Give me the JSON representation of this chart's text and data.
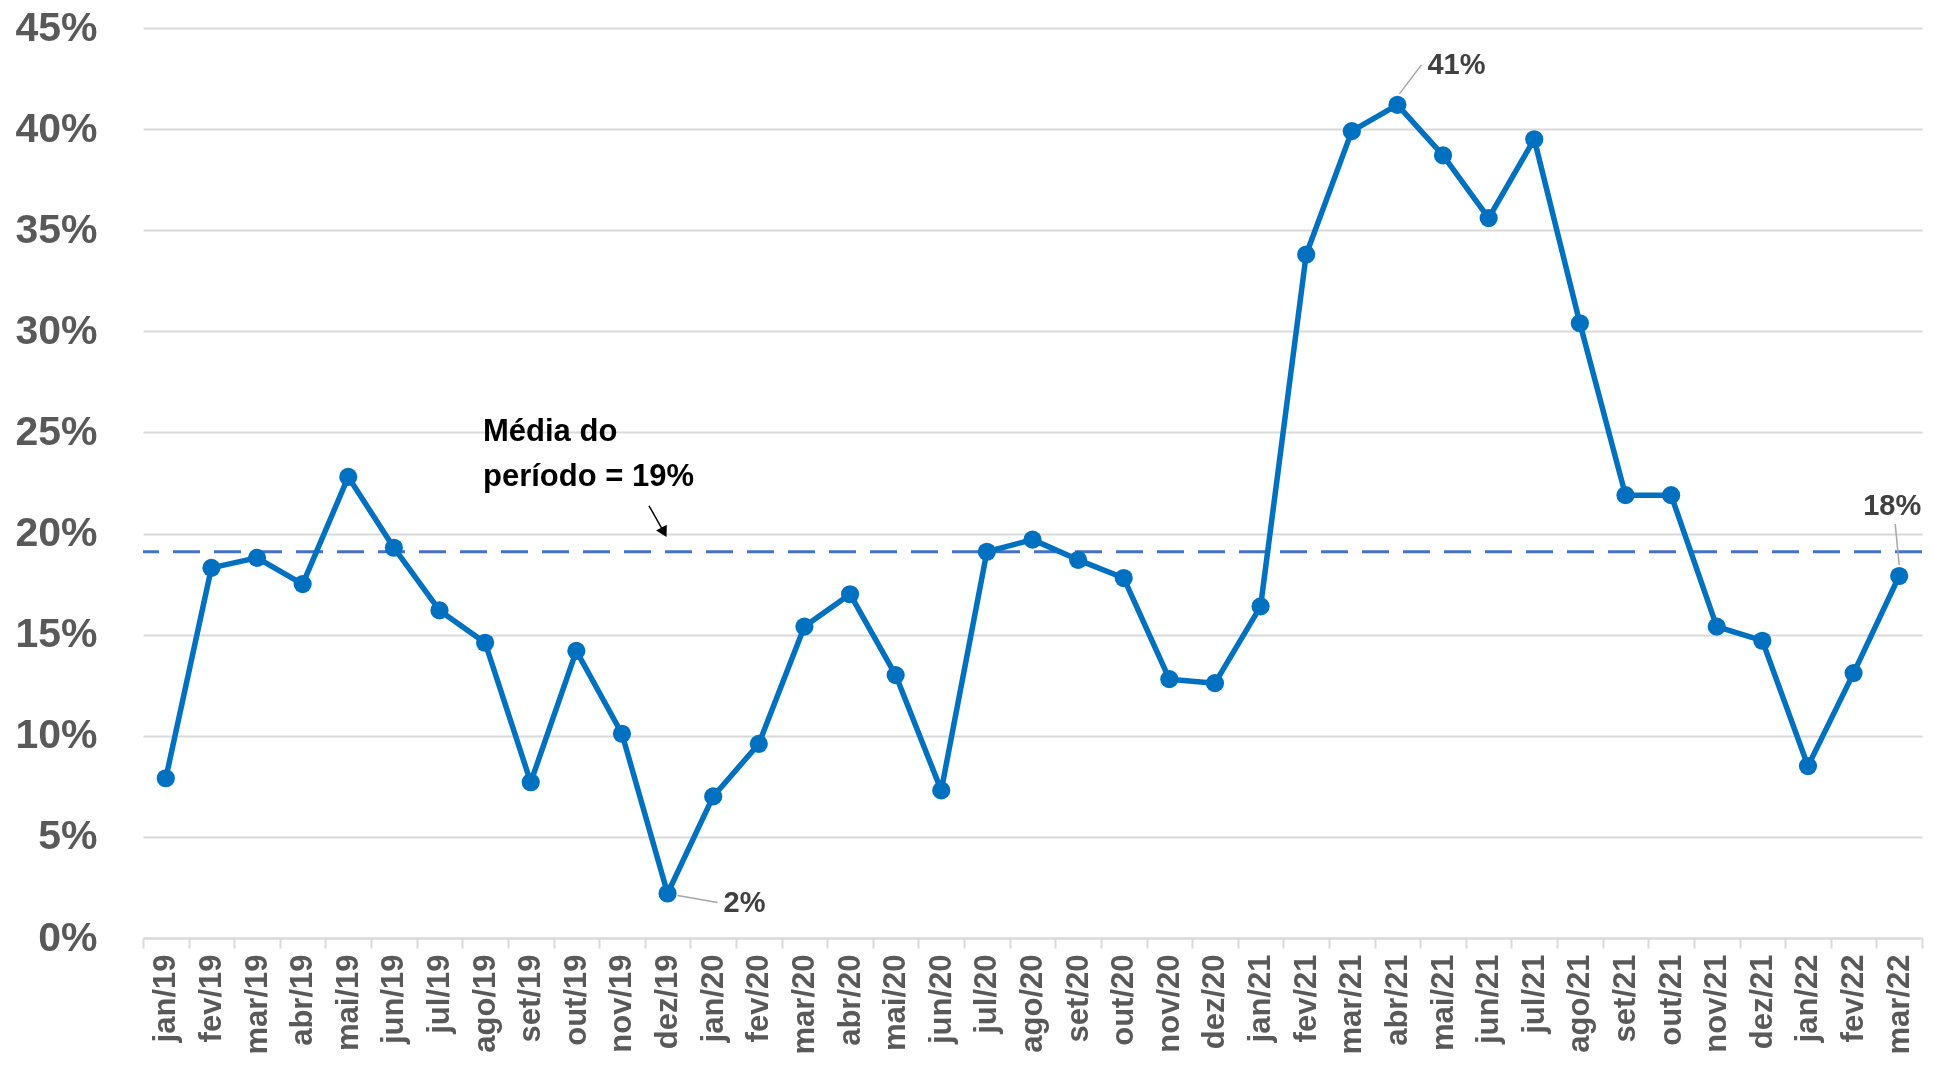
{
  "chart_data": {
    "type": "line",
    "categories": [
      "jan/19",
      "fev/19",
      "mar/19",
      "abr/19",
      "mai/19",
      "jun/19",
      "jul/19",
      "ago/19",
      "set/19",
      "out/19",
      "nov/19",
      "dez/19",
      "jan/20",
      "fev/20",
      "mar/20",
      "abr/20",
      "mai/20",
      "jun/20",
      "jul/20",
      "ago/20",
      "set/20",
      "out/20",
      "nov/20",
      "dez/20",
      "jan/21",
      "fev/21",
      "mar/21",
      "abr/21",
      "mai/21",
      "jun/21",
      "jul/21",
      "ago/21",
      "set/21",
      "out/21",
      "nov/21",
      "dez/21",
      "jan/22",
      "fev/22",
      "mar/22"
    ],
    "series": [
      {
        "color": "#0070c0",
        "values": [
          7.9,
          18.3,
          18.8,
          17.5,
          22.8,
          19.3,
          16.2,
          14.6,
          7.7,
          14.2,
          10.1,
          2.2,
          7.0,
          9.6,
          15.4,
          17.0,
          13.0,
          7.3,
          19.1,
          19.7,
          18.7,
          17.8,
          12.8,
          12.6,
          16.4,
          33.8,
          39.9,
          41.2,
          38.7,
          35.6,
          39.5,
          30.4,
          21.9,
          21.9,
          15.4,
          14.7,
          8.5,
          13.1,
          17.9
        ],
        "value_labels": [
          null,
          null,
          null,
          null,
          null,
          null,
          null,
          null,
          null,
          null,
          null,
          "2%",
          null,
          null,
          null,
          null,
          null,
          null,
          null,
          null,
          null,
          null,
          null,
          null,
          null,
          null,
          null,
          "41%",
          null,
          null,
          null,
          null,
          null,
          null,
          null,
          null,
          null,
          null,
          "18%"
        ]
      }
    ],
    "ylim": [
      0,
      45
    ],
    "yticks": [
      {
        "value": 0,
        "label": "0%"
      },
      {
        "value": 5,
        "label": "5%"
      },
      {
        "value": 10,
        "label": "10%"
      },
      {
        "value": 15,
        "label": "15%"
      },
      {
        "value": 20,
        "label": "20%"
      },
      {
        "value": 25,
        "label": "25%"
      },
      {
        "value": 30,
        "label": "30%"
      },
      {
        "value": 35,
        "label": "35%"
      },
      {
        "value": 40,
        "label": "40%"
      },
      {
        "value": 45,
        "label": "45%"
      }
    ],
    "grid": "y",
    "marker": "circle",
    "ref_lines": [
      {
        "axis": "y",
        "value": 19.1,
        "label": "Média do período = 19%",
        "color": "#4472c4",
        "line_style": "dashed"
      }
    ]
  }
}
